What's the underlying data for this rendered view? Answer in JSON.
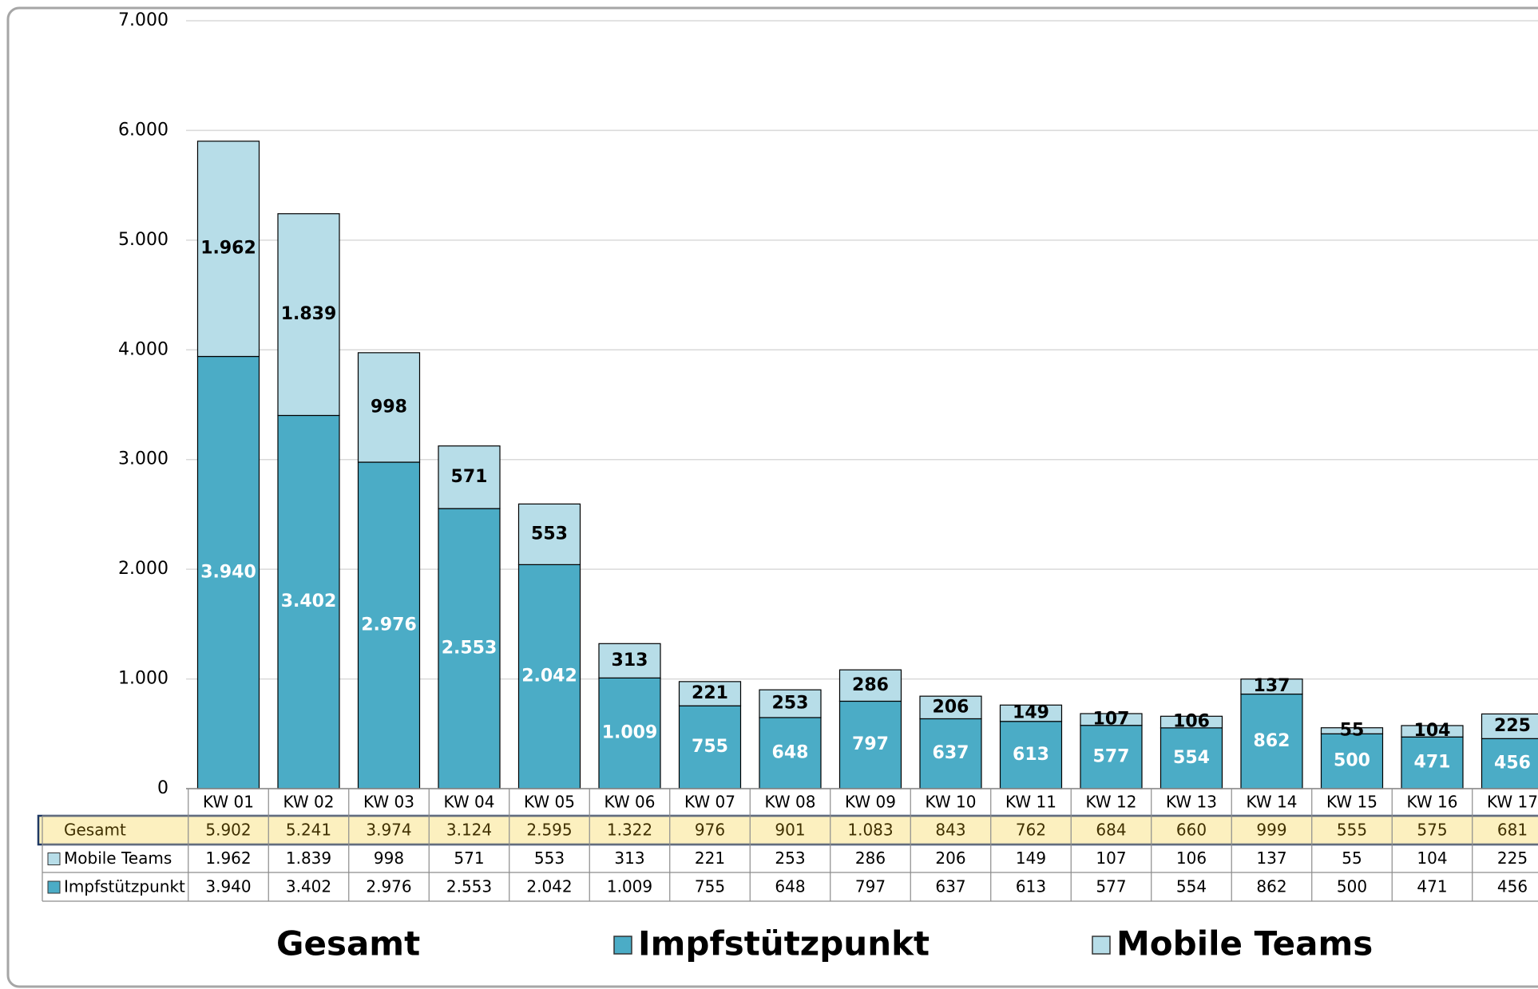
{
  "chart_data": {
    "type": "stacked-bar",
    "categories": [
      "KW 01",
      "KW 02",
      "KW 03",
      "KW 04",
      "KW 05",
      "KW 06",
      "KW 07",
      "KW 08",
      "KW 09",
      "KW 10",
      "KW 11",
      "KW 12",
      "KW 13",
      "KW 14",
      "KW 15",
      "KW 16",
      "KW 17"
    ],
    "series": [
      {
        "name": "Impfstützpunkt",
        "color": "#4bacc6",
        "values": [
          3940,
          3402,
          2976,
          2553,
          2042,
          1009,
          755,
          648,
          797,
          637,
          613,
          577,
          554,
          862,
          500,
          471,
          456
        ],
        "value_labels": [
          "3.940",
          "3.402",
          "2.976",
          "2.553",
          "2.042",
          "1.009",
          "755",
          "648",
          "797",
          "637",
          "613",
          "577",
          "554",
          "862",
          "500",
          "471",
          "456"
        ]
      },
      {
        "name": "Mobile Teams",
        "color": "#b7dde8",
        "values": [
          1962,
          1839,
          998,
          571,
          553,
          313,
          221,
          253,
          286,
          206,
          149,
          107,
          106,
          137,
          55,
          104,
          225
        ],
        "value_labels": [
          "1.962",
          "1.839",
          "998",
          "571",
          "553",
          "313",
          "221",
          "253",
          "286",
          "206",
          "149",
          "107",
          "106",
          "137",
          "55",
          "104",
          "225"
        ]
      }
    ],
    "totals": {
      "name": "Gesamt",
      "values": [
        5902,
        5241,
        3974,
        3124,
        2595,
        1322,
        976,
        901,
        1083,
        843,
        762,
        684,
        660,
        999,
        555,
        575,
        681
      ],
      "value_labels": [
        "5.902",
        "5.241",
        "3.974",
        "3.124",
        "2.595",
        "1.322",
        "976",
        "901",
        "1.083",
        "843",
        "762",
        "684",
        "660",
        "999",
        "555",
        "575",
        "681"
      ]
    },
    "ylim": [
      0,
      7000
    ],
    "yticks": [
      0,
      {
        "value": 1000,
        "label": "1.000"
      },
      {
        "value": 2000,
        "label": "2.000"
      },
      {
        "value": 3000,
        "label": "3.000"
      },
      {
        "value": 4000,
        "label": "4.000"
      },
      {
        "value": 5000,
        "label": "5.000"
      },
      {
        "value": 6000,
        "label": "6.000"
      },
      {
        "value": 7000,
        "label": "7.000"
      }
    ],
    "grid": true
  }
}
